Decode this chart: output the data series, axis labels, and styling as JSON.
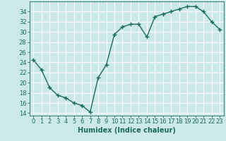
{
  "x": [
    0,
    1,
    2,
    3,
    4,
    5,
    6,
    7,
    8,
    9,
    10,
    11,
    12,
    13,
    14,
    15,
    16,
    17,
    18,
    19,
    20,
    21,
    22,
    23
  ],
  "y": [
    24.5,
    22.5,
    19.0,
    17.5,
    17.0,
    16.0,
    15.5,
    14.2,
    21.0,
    23.5,
    29.5,
    31.0,
    31.5,
    31.5,
    29.0,
    33.0,
    33.5,
    34.0,
    34.5,
    35.0,
    35.0,
    34.0,
    32.0,
    30.5
  ],
  "line_color": "#1a6b5a",
  "bg_color": "#cce9ea",
  "grid_color": "#ffffff",
  "xlabel": "Humidex (Indice chaleur)",
  "ylim": [
    13.5,
    36
  ],
  "xlim": [
    -0.5,
    23.5
  ],
  "yticks": [
    14,
    16,
    18,
    20,
    22,
    24,
    26,
    28,
    30,
    32,
    34
  ],
  "xticks": [
    0,
    1,
    2,
    3,
    4,
    5,
    6,
    7,
    8,
    9,
    10,
    11,
    12,
    13,
    14,
    15,
    16,
    17,
    18,
    19,
    20,
    21,
    22,
    23
  ],
  "marker": "+",
  "linewidth": 1.0,
  "markersize": 4,
  "markeredgewidth": 1.0,
  "xlabel_fontsize": 7,
  "tick_fontsize": 6
}
